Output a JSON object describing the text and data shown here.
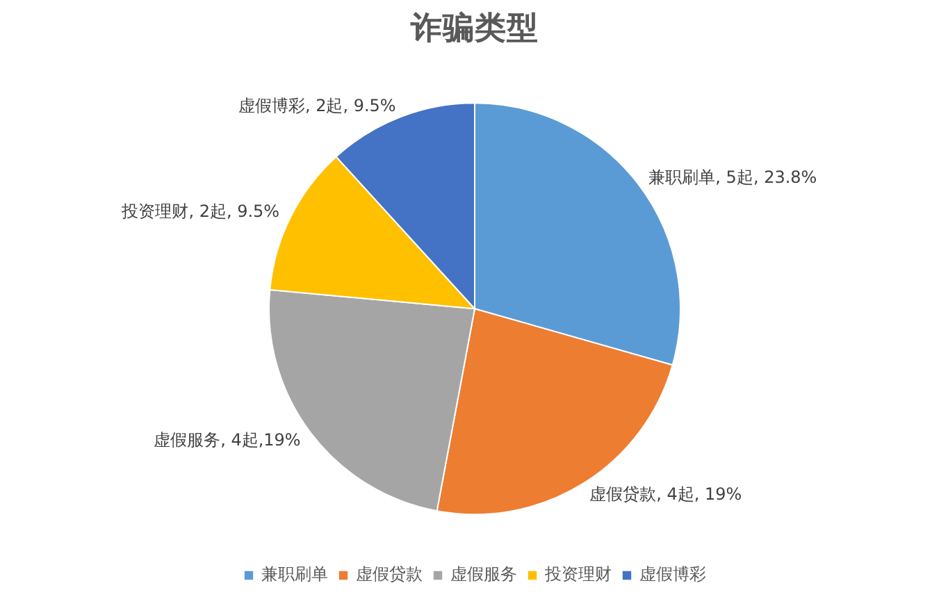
{
  "chart_data": {
    "type": "pie",
    "title": "诈骗类型",
    "categories": [
      "兼职刷单",
      "虚假贷款",
      "虚假服务",
      "投资理财",
      "虚假博彩"
    ],
    "values": [
      5,
      4,
      4,
      2,
      2
    ],
    "colors": [
      "#5b9bd5",
      "#ed7d31",
      "#a5a5a5",
      "#ffc000",
      "#4472c4"
    ],
    "value_labels": [
      "兼职刷单, 5起, 23.8%",
      "虚假贷款, 4起, 19%",
      "虚假服务, 4起,19%",
      "投资理财, 2起, 9.5%",
      "虚假博彩, 2起, 9.5%"
    ],
    "legend": "bottom"
  }
}
